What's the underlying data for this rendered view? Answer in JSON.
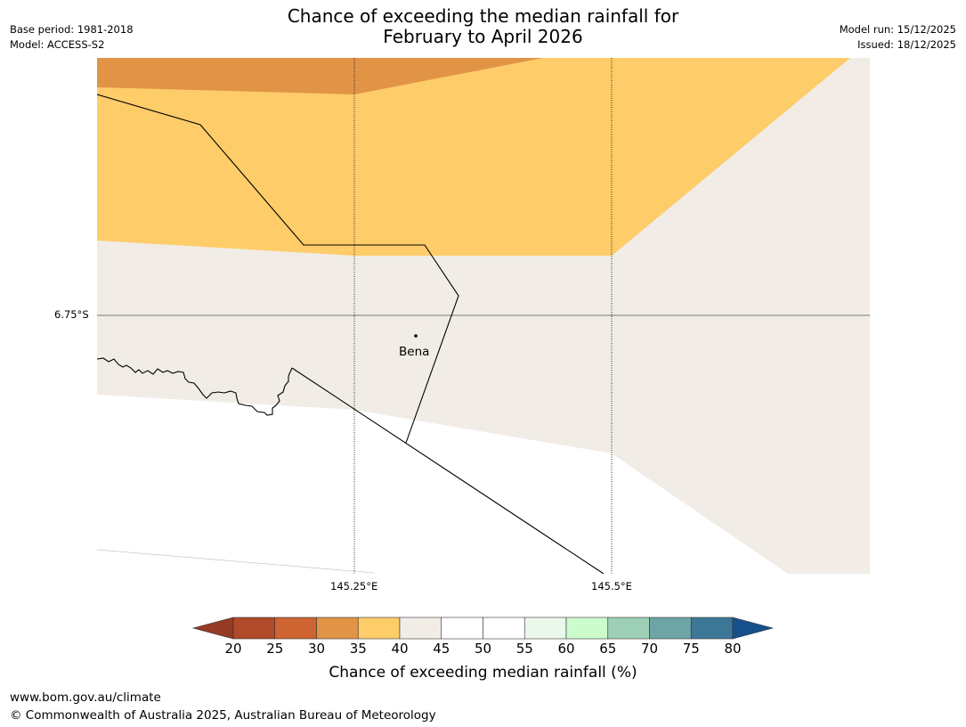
{
  "header": {
    "title_line1": "Chance of exceeding the median rainfall for",
    "title_line2": "February to April 2026",
    "base_period": "Base period: 1981-2018",
    "model": "Model: ACCESS-S2",
    "model_run": "Model run: 15/12/2025",
    "issued": "Issued: 18/12/2025"
  },
  "map": {
    "lat_label": "6.75°S",
    "lon_labels": [
      "145.25°E",
      "145.5°E"
    ],
    "place": "Bena"
  },
  "colorbar": {
    "ticks": [
      "20",
      "25",
      "30",
      "35",
      "40",
      "45",
      "50",
      "55",
      "60",
      "65",
      "70",
      "75",
      "80"
    ],
    "label": "Chance of exceeding median rainfall (%)",
    "colors": {
      "below20": "#973a24",
      "b20_25": "#b04a28",
      "b25_30": "#cd6432",
      "b30_35": "#e19446",
      "b35_40": "#fecc69",
      "b40_45": "#f1ece6",
      "b45_50": "#ffffff",
      "b50_55": "#ffffff",
      "b55_60": "#eaf8eb",
      "b60_65": "#ccfccc",
      "b65_70": "#9dcfb6",
      "b70_75": "#6da4a6",
      "b75_80": "#3d7796",
      "above80": "#15508c"
    }
  },
  "footer": {
    "website": "www.bom.gov.au/climate",
    "copyright": "© Commonwealth of Australia 2025, Australian Bureau of Meteorology"
  }
}
